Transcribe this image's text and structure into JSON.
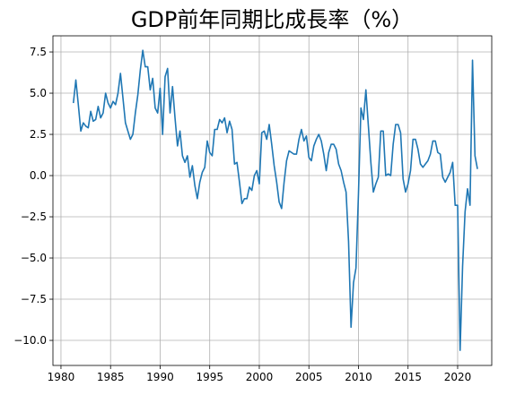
{
  "chart_data": {
    "type": "line",
    "title": "GDP前年同期比成長率（%）",
    "x": [
      1981.25,
      1981.5,
      1981.75,
      1982,
      1982.25,
      1982.5,
      1982.75,
      1983,
      1983.25,
      1983.5,
      1983.75,
      1984,
      1984.25,
      1984.5,
      1984.75,
      1985,
      1985.25,
      1985.5,
      1985.75,
      1986,
      1986.25,
      1986.5,
      1986.75,
      1987,
      1987.25,
      1987.5,
      1987.75,
      1988,
      1988.25,
      1988.5,
      1988.75,
      1989,
      1989.25,
      1989.5,
      1989.75,
      1990,
      1990.25,
      1990.5,
      1990.75,
      1991,
      1991.25,
      1991.5,
      1991.75,
      1992,
      1992.25,
      1992.5,
      1992.75,
      1993,
      1993.25,
      1993.5,
      1993.75,
      1994,
      1994.25,
      1994.5,
      1994.75,
      1995,
      1995.25,
      1995.5,
      1995.75,
      1996,
      1996.25,
      1996.5,
      1996.75,
      1997,
      1997.25,
      1997.5,
      1997.75,
      1998,
      1998.25,
      1998.5,
      1998.75,
      1999,
      1999.25,
      1999.5,
      1999.75,
      2000,
      2000.25,
      2000.5,
      2000.75,
      2001,
      2001.25,
      2001.5,
      2001.75,
      2002,
      2002.25,
      2002.5,
      2002.75,
      2003,
      2003.25,
      2003.5,
      2003.75,
      2004,
      2004.25,
      2004.5,
      2004.75,
      2005,
      2005.25,
      2005.5,
      2005.75,
      2006,
      2006.25,
      2006.5,
      2006.75,
      2007,
      2007.25,
      2007.5,
      2007.75,
      2008,
      2008.25,
      2008.5,
      2008.75,
      2009,
      2009.25,
      2009.5,
      2009.75,
      2010,
      2010.25,
      2010.5,
      2010.75,
      2011,
      2011.25,
      2011.5,
      2011.75,
      2012,
      2012.25,
      2012.5,
      2012.75,
      2013,
      2013.25,
      2013.5,
      2013.75,
      2014,
      2014.25,
      2014.5,
      2014.75,
      2015,
      2015.25,
      2015.5,
      2015.75,
      2016,
      2016.25,
      2016.5,
      2016.75,
      2017,
      2017.25,
      2017.5,
      2017.75,
      2018,
      2018.25,
      2018.5,
      2018.75,
      2019,
      2019.25,
      2019.5,
      2019.75,
      2020,
      2020.25,
      2020.5,
      2020.75,
      2021,
      2021.25,
      2021.5,
      2021.75,
      2022
    ],
    "series": [
      {
        "color": "#1f77b4",
        "values": [
          4.4,
          5.8,
          4.3,
          2.7,
          3.2,
          3.0,
          2.9,
          3.9,
          3.3,
          3.4,
          4.2,
          3.5,
          3.8,
          5.0,
          4.4,
          4.1,
          4.5,
          4.3,
          5.0,
          6.2,
          4.7,
          3.2,
          2.7,
          2.2,
          2.5,
          3.8,
          4.9,
          6.4,
          7.6,
          6.6,
          6.6,
          5.2,
          5.9,
          4.1,
          3.8,
          5.3,
          2.5,
          6.0,
          6.5,
          3.8,
          5.4,
          3.5,
          1.8,
          2.7,
          1.2,
          0.8,
          1.2,
          -0.1,
          0.6,
          -0.6,
          -1.4,
          -0.4,
          0.2,
          0.5,
          2.1,
          1.4,
          1.2,
          2.8,
          2.8,
          3.4,
          3.2,
          3.5,
          2.6,
          3.3,
          2.8,
          0.7,
          0.8,
          -0.4,
          -1.7,
          -1.4,
          -1.4,
          -0.7,
          -0.9,
          0.0,
          0.3,
          -0.5,
          2.6,
          2.7,
          2.2,
          3.1,
          1.9,
          0.6,
          -0.4,
          -1.6,
          -2.0,
          -0.4,
          0.9,
          1.5,
          1.4,
          1.3,
          1.3,
          2.2,
          2.8,
          2.1,
          2.4,
          1.1,
          0.9,
          1.8,
          2.2,
          2.5,
          2.1,
          1.3,
          0.3,
          1.4,
          1.9,
          1.9,
          1.6,
          0.7,
          0.3,
          -0.4,
          -1.0,
          -4.0,
          -9.2,
          -6.5,
          -5.6,
          -1.1,
          4.1,
          3.4,
          5.2,
          3.0,
          0.8,
          -1.0,
          -0.5,
          -0.1,
          2.7,
          2.7,
          0.0,
          0.1,
          0.0,
          1.9,
          3.1,
          3.1,
          2.6,
          -0.2,
          -1.0,
          -0.5,
          0.3,
          2.2,
          2.2,
          1.6,
          0.7,
          0.5,
          0.7,
          0.9,
          1.3,
          2.1,
          2.1,
          1.4,
          1.3,
          -0.1,
          -0.4,
          -0.1,
          0.2,
          0.8,
          -1.8,
          -1.8,
          -10.6,
          -5.5,
          -2.2,
          -0.8,
          -1.8,
          7.0,
          1.2,
          0.4
        ]
      }
    ],
    "xlim": [
      1979.19,
      2023.44
    ],
    "xticks": [
      1980,
      1985,
      1990,
      1995,
      2000,
      2005,
      2010,
      2015,
      2020
    ],
    "ylim": [
      -11.52,
      8.48
    ],
    "yticks": [
      {
        "value": -10,
        "label": "−10.0"
      },
      {
        "value": -7.5,
        "label": "−7.5"
      },
      {
        "value": -5,
        "label": "−5.0"
      },
      {
        "value": -2.5,
        "label": "−2.5"
      },
      {
        "value": 0,
        "label": "0.0"
      },
      {
        "value": 2.5,
        "label": "2.5"
      },
      {
        "value": 5,
        "label": "5.0"
      },
      {
        "value": 7.5,
        "label": "7.5"
      }
    ],
    "grid": true
  }
}
